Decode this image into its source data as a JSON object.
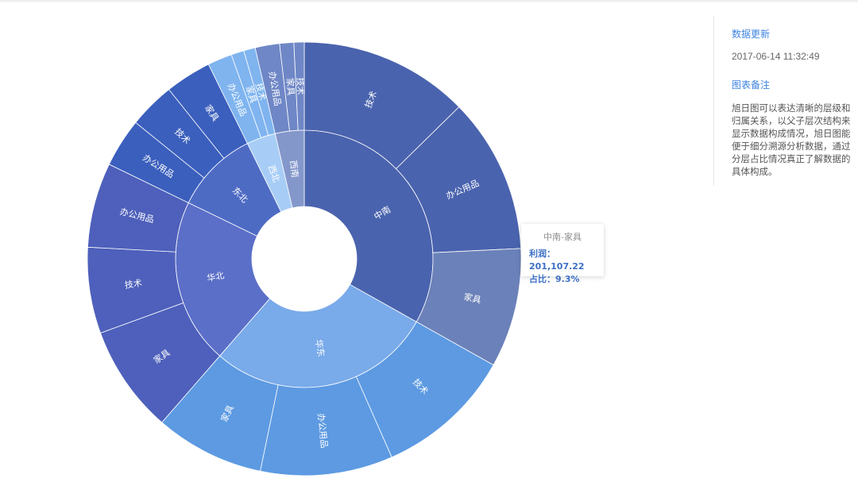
{
  "sidebar": {
    "update_label": "数据更新",
    "update_time": "2017-06-14 11:32:49",
    "note_label": "图表备注",
    "note_text": "旭日图可以表达清晰的层级和归属关系，以父子层次结构来显示数据构成情况，旭日图能便于细分溯源分析数据，通过分层占比情况真正了解数据的具体构成。"
  },
  "tooltip": {
    "title": "中南-家具",
    "profit_label": "利润：",
    "profit_value": "201,107.22",
    "share_label": "占比：",
    "share_value": "9.3%"
  },
  "chart_data": {
    "type": "sunburst",
    "title": "",
    "value_unit": "share of total (%)",
    "regions": [
      {
        "name": "中南",
        "color": "#4a63ae",
        "children": [
          {
            "name": "技术",
            "value": 13.2,
            "color": "#4a63ae"
          },
          {
            "name": "办公用品",
            "value": 12.1,
            "color": "#4a63ae"
          },
          {
            "name": "家具",
            "value": 9.3,
            "color": "#6b81b9"
          }
        ]
      },
      {
        "name": "华东",
        "color": "#79aaea",
        "children": [
          {
            "name": "技术",
            "value": 10.7,
            "color": "#5d9ae2"
          },
          {
            "name": "办公用品",
            "value": 10.3,
            "color": "#5d9ae2"
          },
          {
            "name": "家具",
            "value": 8.5,
            "color": "#5d9ae2"
          }
        ]
      },
      {
        "name": "华北",
        "color": "#5b6fc8",
        "children": [
          {
            "name": "家具",
            "value": 8.4,
            "color": "#4e60bb"
          },
          {
            "name": "技术",
            "value": 6.7,
            "color": "#4e60bb"
          },
          {
            "name": "办公用品",
            "value": 6.6,
            "color": "#4e60bb"
          }
        ]
      },
      {
        "name": "东北",
        "color": "#4e6bc4",
        "children": [
          {
            "name": "办公用品",
            "value": 3.8,
            "color": "#3b5fbd"
          },
          {
            "name": "技术",
            "value": 3.6,
            "color": "#3b5fbd"
          },
          {
            "name": "家具",
            "value": 3.6,
            "color": "#3b5fbd"
          }
        ]
      },
      {
        "name": "西北",
        "color": "#a7cdf6",
        "children": [
          {
            "name": "办公用品",
            "value": 1.9,
            "color": "#7fb4ef"
          },
          {
            "name": "家具",
            "value": 1.0,
            "color": "#7fb4ef"
          },
          {
            "name": "技术",
            "value": 0.9,
            "color": "#7fb4ef"
          }
        ]
      },
      {
        "name": "西南",
        "color": "#8497cb",
        "children": [
          {
            "name": "办公用品",
            "value": 1.9,
            "color": "#6f87c6"
          },
          {
            "name": "家具",
            "value": 1.1,
            "color": "#6f87c6"
          },
          {
            "name": "技术",
            "value": 0.8,
            "color": "#6f87c6"
          }
        ]
      }
    ]
  }
}
